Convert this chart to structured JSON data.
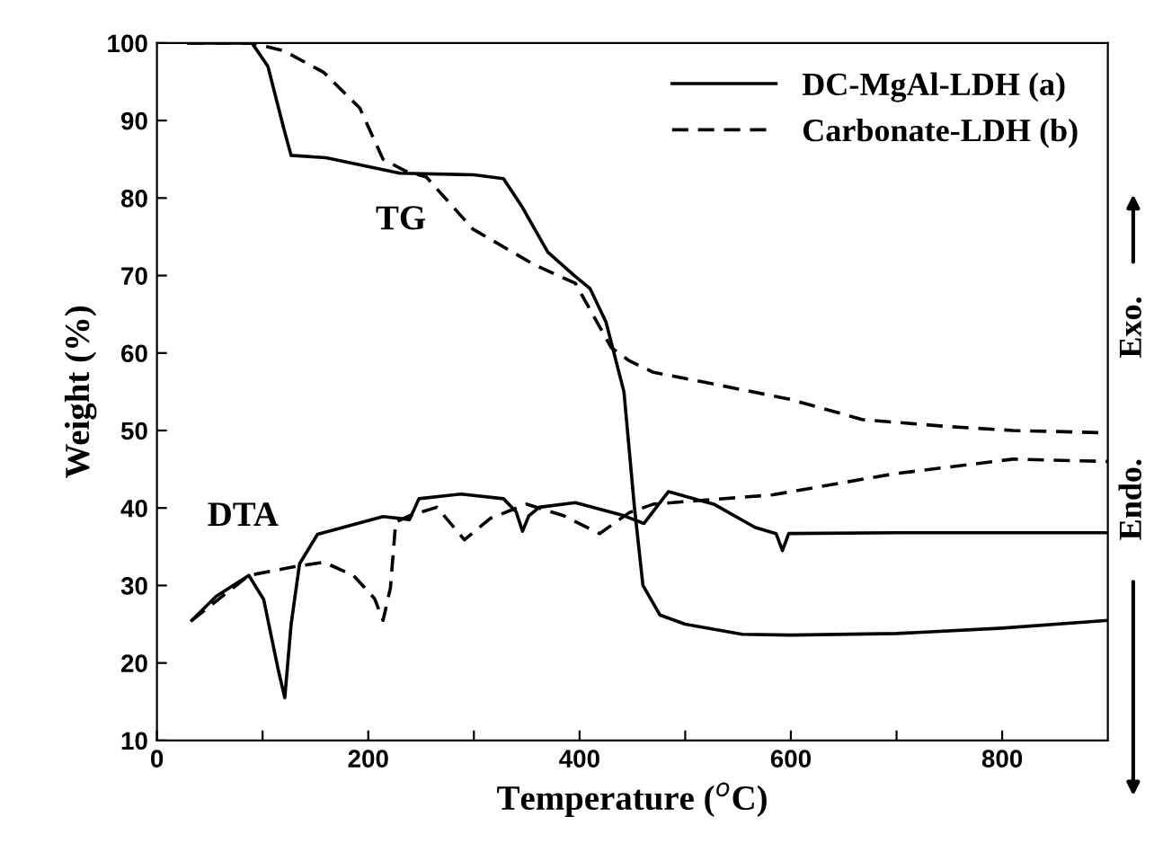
{
  "chart_data": {
    "type": "line",
    "xlabel": "Temperature ($^{o}$C)",
    "ylabel": "Weight (%)",
    "xlim": [
      0,
      900
    ],
    "xticks": [
      0,
      {
        "value": 100,
        "label": null
      },
      200,
      {
        "value": 300,
        "label": null
      },
      400,
      {
        "value": 500,
        "label": null
      },
      600,
      {
        "value": 700,
        "label": null
      },
      800
    ],
    "ylim": [
      10,
      100
    ],
    "yticks": [
      10,
      20,
      30,
      40,
      50,
      60,
      70,
      80,
      90,
      100
    ],
    "legend": "top right",
    "grid": false,
    "annotations": [
      "TG",
      "DTA",
      "Endo.",
      "Exo."
    ],
    "series": [
      {
        "name": "DC-MgAl-LDH (a)",
        "color": "#000000",
        "line_style": "solid",
        "x": [
          30,
          90,
          105,
          120,
          127,
          160,
          230,
          300,
          328,
          345,
          370,
          395,
          410,
          425,
          442,
          452,
          460,
          476,
          500,
          554,
          600,
          700,
          800,
          900
        ],
        "values": [
          100,
          100,
          97,
          89,
          85.5,
          85.2,
          83.2,
          83,
          82.5,
          79,
          73,
          70,
          68.3,
          64,
          55,
          40,
          30,
          26.2,
          25,
          23.7,
          23.6,
          23.8,
          24.5,
          25.5
        ]
      },
      {
        "name": "Carbonate-LDH (b)",
        "color": "#000000",
        "line_style": "dashed",
        "x": [
          30,
          90,
          120,
          158,
          192,
          214,
          235,
          255,
          299,
          357,
          396,
          430,
          447,
          470,
          527,
          600,
          668,
          750,
          810,
          900
        ],
        "values": [
          100,
          100,
          99,
          96.2,
          91.6,
          85,
          83.5,
          82.7,
          76,
          71.4,
          69,
          60.7,
          59,
          57.5,
          56,
          54,
          51.4,
          50.5,
          50,
          49.7
        ]
      },
      {
        "color": "#000000",
        "line_style": "solid",
        "x": [
          33,
          56,
          87,
          101,
          115,
          121,
          127,
          135,
          152,
          214,
          239,
          248,
          288,
          328,
          340,
          346,
          352,
          362,
          396,
          442,
          461,
          484,
          527,
          566,
          586,
          592,
          598,
          700,
          800,
          900
        ],
        "values": [
          25.5,
          28.6,
          31.3,
          28.2,
          19,
          15.5,
          25,
          32.8,
          36.6,
          38.9,
          38.5,
          41.2,
          41.8,
          41.2,
          39.5,
          37,
          39,
          40.1,
          40.7,
          39,
          38,
          42.1,
          40.5,
          37.5,
          36.7,
          34.5,
          36.7,
          36.8,
          36.8,
          36.8
        ]
      },
      {
        "color": "#000000",
        "line_style": "dashed",
        "x": [
          33,
          87,
          129,
          158,
          186,
          206,
          214,
          221,
          226,
          239,
          265,
          291,
          316,
          350,
          385,
          419,
          447,
          470,
          583,
          697,
          810,
          900
        ],
        "values": [
          25.5,
          31.3,
          32.4,
          33.0,
          31.3,
          28.3,
          25.5,
          29.7,
          38.2,
          39,
          40.1,
          35.9,
          38.7,
          40.5,
          39,
          36.7,
          39.4,
          40.5,
          41.7,
          44.4,
          46.3,
          46
        ]
      }
    ]
  }
}
